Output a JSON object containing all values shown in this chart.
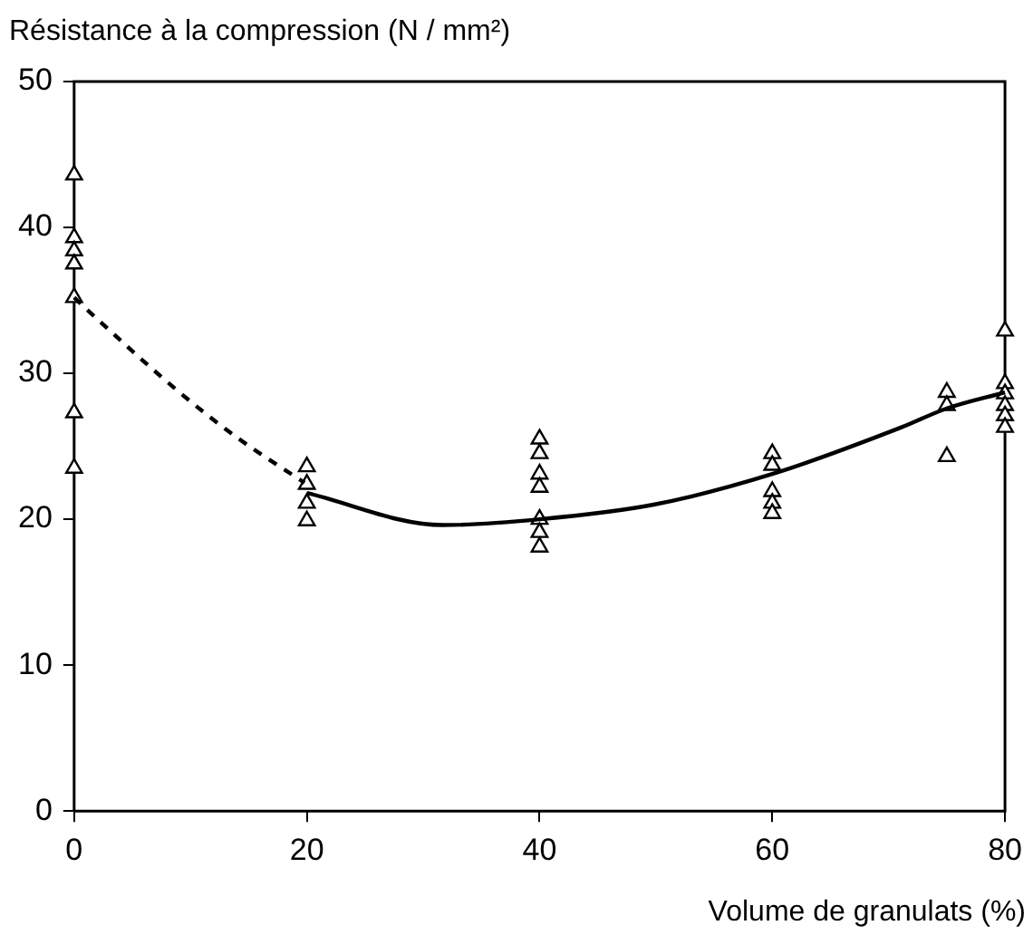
{
  "chart_data": {
    "type": "scatter",
    "ylabel": "Résistance à la compression (N / mm²)",
    "xlabel": "Volume de granulats (%)",
    "xlim": [
      0,
      80
    ],
    "xticks": [
      0,
      20,
      40,
      60,
      80
    ],
    "ylim": [
      0,
      50
    ],
    "yticks": [
      0,
      10,
      20,
      30,
      40,
      50
    ],
    "grid": false,
    "legend": false,
    "series": [
      {
        "type": "scatter",
        "marker": "triangle",
        "color": "#000000",
        "x": [
          0,
          0,
          0,
          0,
          0,
          0,
          0,
          20,
          20,
          20,
          20,
          40,
          40,
          40,
          40,
          40,
          40,
          40,
          60,
          60,
          60,
          60,
          60,
          75,
          75,
          75,
          80,
          80,
          80,
          80,
          80,
          80
        ],
        "values": [
          43.6,
          39.3,
          38.4,
          37.5,
          35.2,
          27.3,
          23.5,
          23.6,
          22.4,
          21.1,
          19.9,
          25.5,
          24.5,
          23.1,
          22.2,
          20.0,
          19.1,
          18.1,
          24.5,
          23.7,
          21.9,
          21.1,
          20.4,
          28.7,
          27.8,
          24.3,
          32.9,
          29.3,
          28.6,
          27.8,
          27.1,
          26.3
        ]
      },
      {
        "type": "line",
        "line_style": "dashed",
        "marker": "none",
        "color": "#000000",
        "x": [
          0,
          1.2,
          8.9,
          14,
          19.8
        ],
        "values": [
          35.2,
          34.3,
          28.8,
          25.6,
          22.5
        ]
      },
      {
        "type": "line",
        "line_style": "solid",
        "marker": "none",
        "color": "#000000",
        "x": [
          20,
          31.7,
          40,
          49.8,
          60,
          71.1,
          75,
          80
        ],
        "values": [
          21.8,
          19.6,
          20.0,
          21.0,
          23.1,
          26.3,
          27.6,
          28.7
        ]
      }
    ]
  }
}
